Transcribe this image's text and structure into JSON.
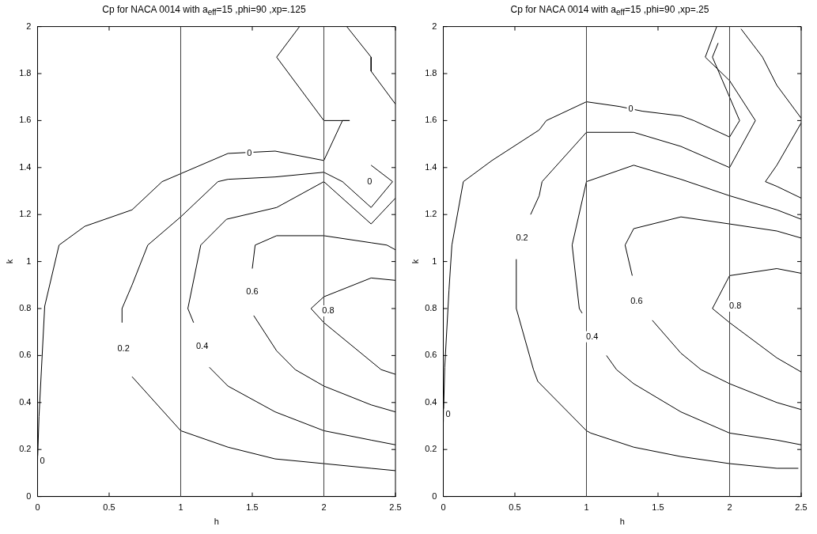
{
  "chart_data": [
    {
      "type": "line",
      "title": "Cp for NACA 0014 with a$_{eff}$=15 ,phi=90 ,xp=.125",
      "xlabel": "h",
      "ylabel": "k",
      "xlim": [
        0,
        2.5
      ],
      "ylim": [
        0,
        2
      ],
      "xticks": [
        0,
        0.5,
        1,
        1.5,
        2,
        2.5
      ],
      "yticks": [
        0,
        0.2,
        0.4,
        0.6,
        0.8,
        1,
        1.2,
        1.4,
        1.6,
        1.8,
        2
      ],
      "grid": false,
      "legend": false,
      "line_style": "solid",
      "ref_lines": [
        {
          "axis": "x",
          "value": 1,
          "color": "#404040"
        },
        {
          "axis": "x",
          "value": 2,
          "color": "#404040"
        }
      ],
      "series": [
        {
          "color": "#000000",
          "x": [
            0,
            0.01,
            0.05,
            0.15,
            0.33,
            0.66,
            0.87,
            1.33,
            1.66,
            2.0,
            2.13,
            2.18,
            2.0,
            1.67,
            1.83
          ],
          "values": [
            0.15,
            0.34,
            0.81,
            1.07,
            1.15,
            1.22,
            1.34,
            1.46,
            1.47,
            1.43,
            1.6,
            1.6,
            1.6,
            1.87,
            2.0
          ]
        },
        {
          "color": "#000000",
          "x": [
            2.5,
            2.33,
            2.0,
            1.66,
            1.33,
            1.0,
            0.66
          ],
          "values": [
            0.11,
            0.12,
            0.14,
            0.16,
            0.21,
            0.28,
            0.51
          ]
        },
        {
          "color": "#000000",
          "x": [
            0.59,
            0.59,
            0.66,
            0.77,
            1.0,
            1.26,
            1.33,
            1.66,
            2.0,
            2.13,
            2.33,
            2.48,
            2.33
          ],
          "values": [
            0.74,
            0.8,
            0.9,
            1.07,
            1.19,
            1.34,
            1.35,
            1.36,
            1.38,
            1.34,
            1.23,
            1.34,
            1.41
          ]
        },
        {
          "color": "#000000",
          "x": [
            2.5,
            2.33,
            2.0,
            1.66,
            1.33,
            1.2
          ],
          "values": [
            0.22,
            0.24,
            0.28,
            0.36,
            0.47,
            0.55
          ]
        },
        {
          "color": "#000000",
          "x": [
            1.09,
            1.05,
            1.14,
            1.32,
            1.67,
            2.0,
            2.33,
            2.5
          ],
          "values": [
            0.74,
            0.8,
            1.07,
            1.18,
            1.23,
            1.34,
            1.16,
            1.27
          ]
        },
        {
          "color": "#000000",
          "x": [
            2.5,
            2.33,
            2.0,
            1.8,
            1.67,
            1.51
          ],
          "values": [
            0.36,
            0.39,
            0.47,
            0.54,
            0.62,
            0.77
          ]
        },
        {
          "color": "#000000",
          "x": [
            1.5,
            1.52,
            1.67,
            2.0,
            2.33,
            2.44,
            2.5
          ],
          "values": [
            0.97,
            1.07,
            1.11,
            1.11,
            1.08,
            1.07,
            1.05
          ]
        },
        {
          "color": "#000000",
          "x": [
            2.5,
            2.4,
            2.0,
            1.91,
            2.0,
            2.33,
            2.5
          ],
          "values": [
            0.52,
            0.54,
            0.74,
            0.8,
            0.85,
            0.93,
            0.92
          ]
        },
        {
          "color": "#000000",
          "x": [
            2.16,
            2.33,
            2.33,
            2.5
          ],
          "values": [
            2.0,
            1.87,
            1.81,
            1.67
          ]
        }
      ],
      "annotations": [
        {
          "text": "0",
          "x": 1.48,
          "y": 1.46
        },
        {
          "text": "0.2",
          "x": 0.6,
          "y": 0.63
        },
        {
          "text": "0.4",
          "x": 1.15,
          "y": 0.64
        },
        {
          "text": "0.6",
          "x": 1.5,
          "y": 0.87
        },
        {
          "text": "0.8",
          "x": 2.03,
          "y": 0.79
        },
        {
          "text": "0",
          "x": 2.32,
          "y": 1.34
        },
        {
          "text": "0",
          "x": 0.02,
          "y": 0.15
        }
      ]
    },
    {
      "type": "line",
      "title": "Cp for NACA 0014 with a$_{eff}$=15 ,phi=90 ,xp=.25",
      "xlabel": "h",
      "ylabel": "k",
      "xlim": [
        0,
        2.5
      ],
      "ylim": [
        0,
        2
      ],
      "xticks": [
        0,
        0.5,
        1,
        1.5,
        2,
        2.5
      ],
      "yticks": [
        0,
        0.2,
        0.4,
        0.6,
        0.8,
        1,
        1.2,
        1.4,
        1.6,
        1.8,
        2
      ],
      "grid": false,
      "legend": false,
      "line_style": "solid",
      "ref_lines": [
        {
          "axis": "x",
          "value": 1,
          "color": "#404040"
        },
        {
          "axis": "x",
          "value": 2,
          "color": "#404040"
        }
      ],
      "series": [
        {
          "color": "#000000",
          "x": [
            0,
            0.01,
            0.04,
            0.06,
            0.14,
            0.34,
            0.67,
            0.72,
            1.0,
            1.23,
            1.31,
            1.39,
            1.66,
            1.75,
            2.0,
            2.07,
            1.88,
            1.92
          ],
          "values": [
            0.31,
            0.55,
            0.88,
            1.07,
            1.34,
            1.43,
            1.56,
            1.6,
            1.68,
            1.66,
            1.65,
            1.64,
            1.62,
            1.6,
            1.53,
            1.6,
            1.87,
            1.93
          ]
        },
        {
          "color": "#000000",
          "x": [
            2.48,
            2.33,
            2.0,
            1.66,
            1.33,
            1.03,
            1.0,
            0.66,
            0.63,
            0.51,
            0.51
          ],
          "values": [
            0.12,
            0.12,
            0.14,
            0.17,
            0.21,
            0.27,
            0.28,
            0.49,
            0.54,
            0.8,
            1.01
          ]
        },
        {
          "color": "#000000",
          "x": [
            0.61,
            0.67,
            0.69,
            1.0,
            1.33,
            1.66,
            2.0,
            2.18,
            2.0,
            1.83,
            1.91
          ],
          "values": [
            1.2,
            1.28,
            1.34,
            1.55,
            1.55,
            1.49,
            1.4,
            1.6,
            1.77,
            1.87,
            2.0
          ]
        },
        {
          "color": "#000000",
          "x": [
            2.5,
            2.33,
            2.0,
            1.66,
            1.33,
            1.21,
            1.14
          ],
          "values": [
            0.22,
            0.24,
            0.27,
            0.36,
            0.48,
            0.54,
            0.6
          ]
        },
        {
          "color": "#000000",
          "x": [
            0.97,
            0.95,
            0.9,
            1.0,
            1.33,
            1.66,
            2.0,
            2.33,
            2.5
          ],
          "values": [
            0.78,
            0.8,
            1.07,
            1.34,
            1.41,
            1.35,
            1.28,
            1.22,
            1.18
          ]
        },
        {
          "color": "#000000",
          "x": [
            2.5,
            2.33,
            2.0,
            1.8,
            1.66,
            1.46
          ],
          "values": [
            0.37,
            0.4,
            0.48,
            0.54,
            0.61,
            0.75
          ]
        },
        {
          "color": "#000000",
          "x": [
            1.32,
            1.27,
            1.33,
            1.66,
            2.0,
            2.33,
            2.5
          ],
          "values": [
            0.94,
            1.07,
            1.14,
            1.19,
            1.16,
            1.13,
            1.1
          ]
        },
        {
          "color": "#000000",
          "x": [
            2.5,
            2.33,
            2.0,
            1.88,
            2.0,
            2.33,
            2.5
          ],
          "values": [
            0.53,
            0.59,
            0.74,
            0.8,
            0.94,
            0.97,
            0.95
          ]
        },
        {
          "color": "#000000",
          "x": [
            2.08,
            2.23,
            2.33,
            2.5
          ],
          "values": [
            1.99,
            1.87,
            1.75,
            1.61
          ]
        },
        {
          "color": "#000000",
          "x": [
            2.5,
            2.33,
            2.25,
            2.33,
            2.5
          ],
          "values": [
            1.59,
            1.41,
            1.34,
            1.32,
            1.27
          ]
        }
      ],
      "annotations": [
        {
          "text": "0",
          "x": 1.31,
          "y": 1.65
        },
        {
          "text": "0.2",
          "x": 0.55,
          "y": 1.1
        },
        {
          "text": "0.4",
          "x": 1.04,
          "y": 0.68
        },
        {
          "text": "0.6",
          "x": 1.35,
          "y": 0.83
        },
        {
          "text": "0.8",
          "x": 2.04,
          "y": 0.81
        },
        {
          "text": "0",
          "x": 0.02,
          "y": 0.35
        }
      ]
    }
  ]
}
